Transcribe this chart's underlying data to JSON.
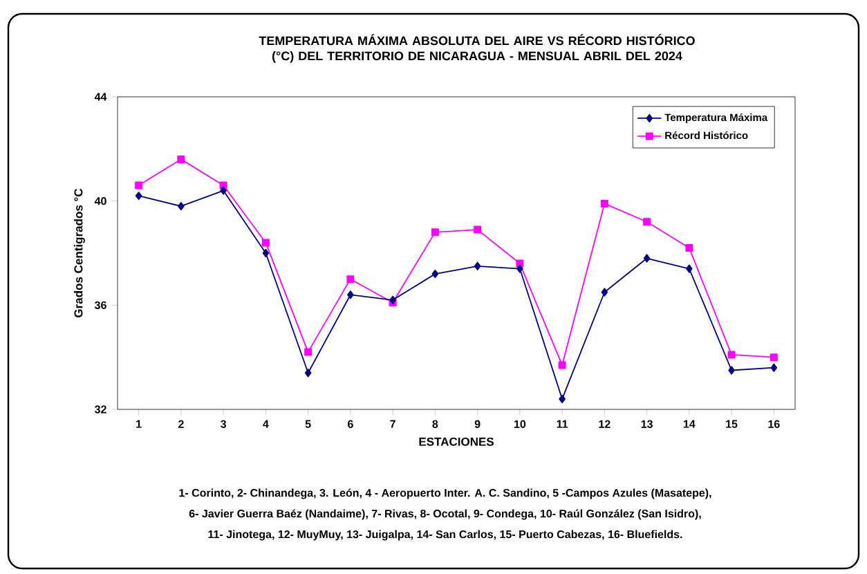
{
  "chart_data": {
    "type": "line",
    "title": "TEMPERATURA MÁXIMA  ABSOLUTA DEL AIRE  VS  RÉCORD HISTÓRICO  (°C) DEL TERRITORIO DE NICARAGUA  - MENSUAL ABRIL DEL 2024",
    "xlabel": "ESTACIONES",
    "ylabel": "Grados Centigrados °C",
    "categories": [
      "1",
      "2",
      "3",
      "4",
      "5",
      "6",
      "7",
      "8",
      "9",
      "10",
      "11",
      "12",
      "13",
      "14",
      "15",
      "16"
    ],
    "series": [
      {
        "name": "Temperatura Máxima",
        "color": "#000080",
        "marker": "diamond",
        "values": [
          40.2,
          39.8,
          40.4,
          38.0,
          33.4,
          36.4,
          36.2,
          37.2,
          37.5,
          37.4,
          32.4,
          36.5,
          37.8,
          37.4,
          33.5,
          33.6
        ]
      },
      {
        "name": "Récord Histórico",
        "color": "#ff00ff",
        "marker": "square",
        "values": [
          40.6,
          41.6,
          40.6,
          38.4,
          34.2,
          37.0,
          36.1,
          38.8,
          38.9,
          37.6,
          33.7,
          39.9,
          39.2,
          38.2,
          34.1,
          34.0
        ]
      }
    ],
    "ylim": [
      32,
      44
    ],
    "yticks": [
      32,
      36,
      40,
      44
    ],
    "grid": false,
    "legend": "top right",
    "line_style": "solid",
    "annotations": [
      "1- Corinto,  2- Chinandega, 3. León, 4 - Aeropuerto Inter. A. C. Sandino, 5 -Campos Azules (Masatepe),",
      "6- Javier Guerra Baéz (Nandaime), 7- Rivas,  8- Ocotal, 9- Condega, 10- Raúl González (San Isidro),",
      "11- Jinotega, 12- MuyMuy,  13- Juigalpa, 14- San Carlos, 15- Puerto Cabezas, 16- Bluefields."
    ]
  }
}
